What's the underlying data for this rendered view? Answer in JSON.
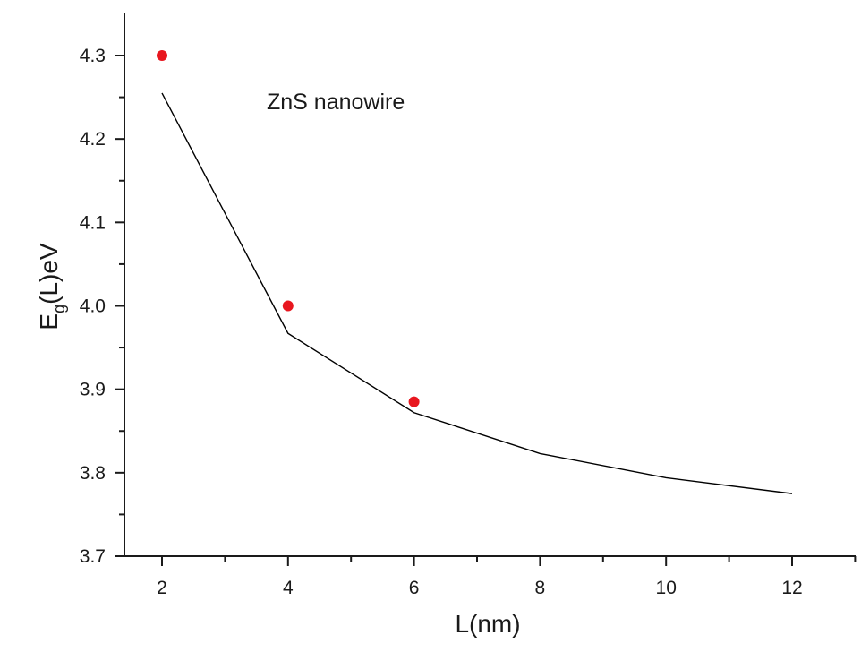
{
  "chart_data": {
    "type": "line",
    "xlabel": "L(nm)",
    "ylabel": {
      "main": "E",
      "sub": "g",
      "rest": "(L)eV"
    },
    "annotation": "ZnS nanowire",
    "xlim": [
      1.3,
      12.0
    ],
    "ylim": [
      3.7,
      4.33
    ],
    "x_ticks": [
      2,
      4,
      6,
      8,
      10,
      12
    ],
    "y_ticks": [
      3.7,
      3.8,
      3.9,
      4.0,
      4.1,
      4.2,
      4.3
    ],
    "x_tick_labels": [
      "2",
      "4",
      "6",
      "8",
      "10",
      "12"
    ],
    "y_tick_labels": [
      "3.7",
      "3.8",
      "3.9",
      "4.0",
      "4.1",
      "4.2",
      "4.3"
    ],
    "grid": false,
    "series": [
      {
        "kind": "line",
        "color": "#000000",
        "x": [
          2,
          4,
          6,
          8,
          10,
          12
        ],
        "y": [
          4.255,
          3.967,
          3.872,
          3.823,
          3.794,
          3.775
        ]
      },
      {
        "kind": "scatter",
        "color": "#e8171f",
        "x": [
          2,
          4,
          6
        ],
        "y": [
          4.3,
          4.0,
          3.885
        ]
      }
    ]
  }
}
